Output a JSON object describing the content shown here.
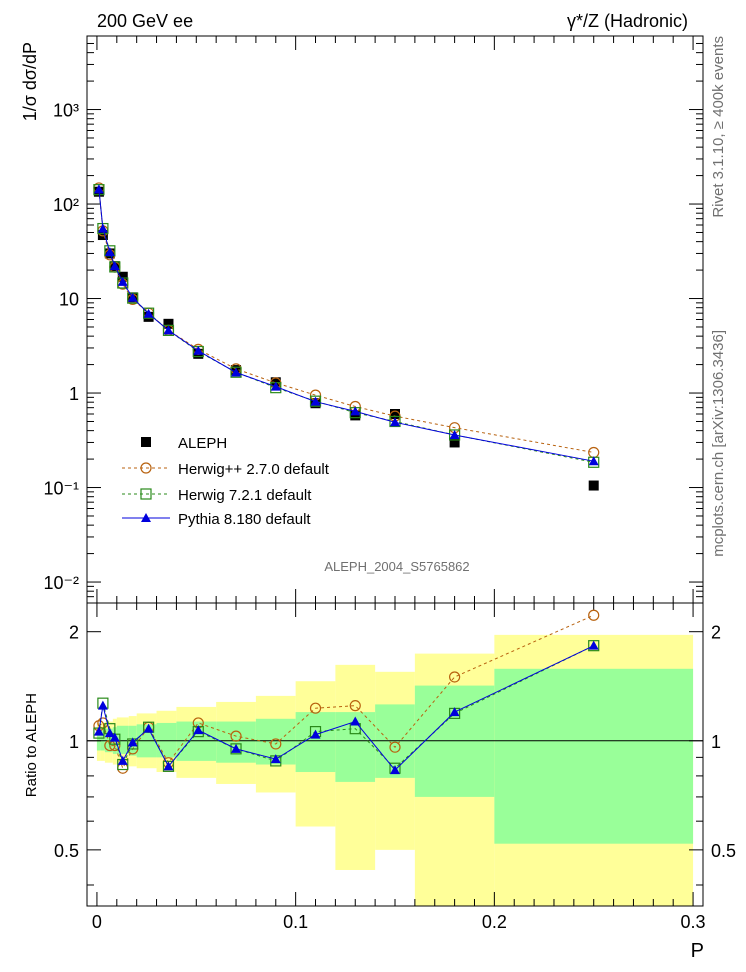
{
  "header": {
    "left": "200 GeV ee",
    "right": "γ*/Z (Hadronic)"
  },
  "side_text": {
    "rivet": "Rivet 3.1.10, ≥ 400k events",
    "mcplots": "mcplots.cern.ch [arXiv:1306.3436]"
  },
  "colors": {
    "aleph": "#000000",
    "herwigpp": "#b8620f",
    "herwig7": "#2a8a1a",
    "pythia": "#0000dd",
    "band_inner": "#99ff99",
    "band_outer": "#ffff99"
  },
  "chart_data": [
    {
      "type": "line",
      "panel": "main",
      "ylabel": "1/σ  dσ/dP",
      "xlabel": "",
      "yscale": "log",
      "xlim": [
        -0.005,
        0.305
      ],
      "ylim": [
        0.006,
        6000
      ],
      "ytick_labels": [
        "10⁻²",
        "10⁻¹",
        "1",
        "10",
        "10²",
        "10³"
      ],
      "yticks": [
        0.01,
        0.1,
        1,
        10,
        100,
        1000
      ],
      "watermark": "ALEPH_2004_S5765862",
      "x": [
        0.001,
        0.003,
        0.0065,
        0.009,
        0.013,
        0.018,
        0.026,
        0.036,
        0.051,
        0.07,
        0.09,
        0.11,
        0.13,
        0.15,
        0.18,
        0.25
      ],
      "series": [
        {
          "name": "ALEPH",
          "key": "aleph",
          "marker": "square-filled",
          "values": [
            135,
            47,
            30,
            22,
            17,
            10.3,
            6.4,
            5.4,
            2.6,
            1.75,
            1.3,
            0.78,
            0.58,
            0.6,
            0.3,
            0.105
          ]
        },
        {
          "name": "Herwig++ 2.7.0 default",
          "key": "herwigpp",
          "marker": "circle-open",
          "line": "dashed",
          "values": [
            148,
            52,
            29,
            21.5,
            14.2,
            9.8,
            7.0,
            4.6,
            2.9,
            1.8,
            1.28,
            0.95,
            0.72,
            0.57,
            0.43,
            0.235
          ]
        },
        {
          "name": "Herwig 7.2.1 default",
          "key": "herwig7",
          "marker": "square-open",
          "line": "dashed",
          "values": [
            142,
            55,
            32,
            21.6,
            14.6,
            10.1,
            7.0,
            4.6,
            2.75,
            1.66,
            1.14,
            0.82,
            0.62,
            0.5,
            0.36,
            0.185
          ]
        },
        {
          "name": "Pythia 8.180 default",
          "key": "pythia",
          "marker": "triangle-filled",
          "line": "solid",
          "values": [
            143,
            55,
            31,
            22,
            15,
            10.2,
            6.9,
            4.6,
            2.8,
            1.65,
            1.17,
            0.81,
            0.64,
            0.49,
            0.36,
            0.19
          ]
        }
      ],
      "legend": [
        "ALEPH",
        "Herwig++ 2.7.0 default",
        "Herwig 7.2.1 default",
        "Pythia 8.180 default"
      ]
    },
    {
      "type": "line",
      "panel": "ratio",
      "ylabel": "Ratio to ALEPH",
      "xlabel": "P",
      "yscale": "log",
      "ylim": [
        0.35,
        2.4
      ],
      "yticks": [
        0.5,
        1,
        2
      ],
      "ytick_labels": [
        "0.5",
        "1",
        "2"
      ],
      "xticks": [
        0,
        0.1,
        0.2,
        0.3
      ],
      "xtick_labels": [
        "0",
        "0.1",
        "0.2",
        "0.3"
      ],
      "x": [
        0.001,
        0.003,
        0.0065,
        0.009,
        0.013,
        0.018,
        0.026,
        0.036,
        0.051,
        0.07,
        0.09,
        0.11,
        0.13,
        0.15,
        0.18,
        0.25
      ],
      "bins": [
        [
          0,
          0.002
        ],
        [
          0.002,
          0.004
        ],
        [
          0.004,
          0.008
        ],
        [
          0.008,
          0.01
        ],
        [
          0.01,
          0.016
        ],
        [
          0.016,
          0.02
        ],
        [
          0.02,
          0.03
        ],
        [
          0.03,
          0.04
        ],
        [
          0.04,
          0.06
        ],
        [
          0.06,
          0.08
        ],
        [
          0.08,
          0.1
        ],
        [
          0.1,
          0.12
        ],
        [
          0.12,
          0.14
        ],
        [
          0.14,
          0.16
        ],
        [
          0.16,
          0.2
        ],
        [
          0.2,
          0.3
        ]
      ],
      "band_inner": [
        [
          0.94,
          1.07
        ],
        [
          0.94,
          1.07
        ],
        [
          0.93,
          1.08
        ],
        [
          0.92,
          1.09
        ],
        [
          0.92,
          1.1
        ],
        [
          0.91,
          1.1
        ],
        [
          0.9,
          1.11
        ],
        [
          0.9,
          1.12
        ],
        [
          0.88,
          1.13
        ],
        [
          0.87,
          1.13
        ],
        [
          0.86,
          1.15
        ],
        [
          0.82,
          1.2
        ],
        [
          0.77,
          1.2
        ],
        [
          0.79,
          1.26
        ],
        [
          0.7,
          1.42
        ],
        [
          0.52,
          1.58
        ]
      ],
      "band_outer": [
        [
          0.88,
          1.12
        ],
        [
          0.88,
          1.12
        ],
        [
          0.87,
          1.13
        ],
        [
          0.86,
          1.15
        ],
        [
          0.86,
          1.16
        ],
        [
          0.85,
          1.17
        ],
        [
          0.84,
          1.19
        ],
        [
          0.82,
          1.21
        ],
        [
          0.79,
          1.24
        ],
        [
          0.76,
          1.28
        ],
        [
          0.72,
          1.33
        ],
        [
          0.58,
          1.46
        ],
        [
          0.44,
          1.62
        ],
        [
          0.5,
          1.55
        ],
        [
          0.35,
          1.74
        ],
        [
          0.35,
          1.96
        ]
      ],
      "series": [
        {
          "name": "Herwig++ 2.7.0 default",
          "key": "herwigpp",
          "marker": "circle-open",
          "line": "dashed",
          "values": [
            1.1,
            1.12,
            0.97,
            0.97,
            0.84,
            0.95,
            1.09,
            0.87,
            1.12,
            1.03,
            0.98,
            1.23,
            1.25,
            0.96,
            1.5,
            2.22
          ]
        },
        {
          "name": "Herwig 7.2.1 default",
          "key": "herwig7",
          "marker": "square-open",
          "line": "dashed",
          "values": [
            1.05,
            1.27,
            1.08,
            1.01,
            0.86,
            0.98,
            1.09,
            0.85,
            1.06,
            0.95,
            0.88,
            1.06,
            1.08,
            0.84,
            1.19,
            1.83
          ]
        },
        {
          "name": "Pythia 8.180 default",
          "key": "pythia",
          "marker": "triangle-filled",
          "line": "solid",
          "values": [
            1.06,
            1.25,
            1.05,
            1.02,
            0.88,
            0.99,
            1.08,
            0.85,
            1.07,
            0.95,
            0.89,
            1.04,
            1.13,
            0.83,
            1.2,
            1.83
          ]
        }
      ]
    }
  ]
}
